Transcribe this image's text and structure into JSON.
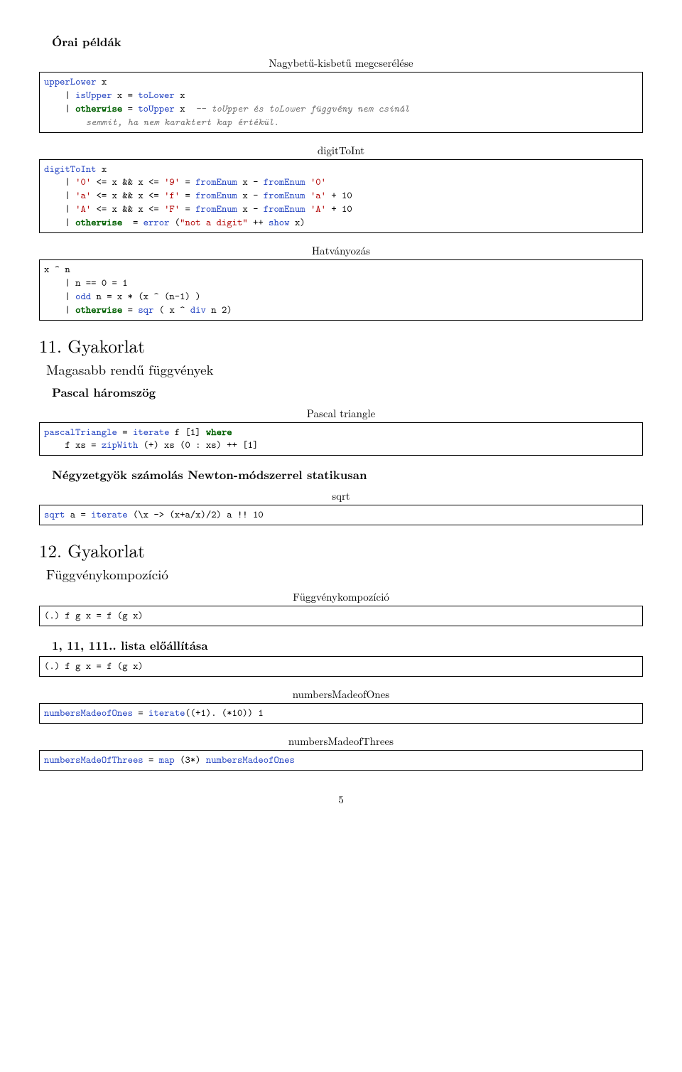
{
  "page_number": "5",
  "s0": {
    "title": "Órai példák"
  },
  "blocks": [
    {
      "caption": "Nagybetű-kisbetű megcserélése",
      "code": "<span class=\"fn\">upperLower</span> x\n    | <span class=\"fn\">isUpper</span> x = <span class=\"fn\">toLower</span> x\n    | <span class=\"kw\">otherwise</span> = <span class=\"fn\">toUpper</span> x  <span class=\"cm\">-- toUpper és toLower függvény nem csinál\n        semmit, ha nem karaktert kap értékül.</span>"
    },
    {
      "caption": "digitToInt",
      "code": "<span class=\"fn\">digitToInt</span> x\n    | <span class=\"str\">'0'</span> &lt;= x &amp;&amp; x &lt;= <span class=\"str\">'9'</span> = <span class=\"fn\">fromEnum</span> x - <span class=\"fn\">fromEnum</span> <span class=\"str\">'0'</span>\n    | <span class=\"str\">'a'</span> &lt;= x &amp;&amp; x &lt;= <span class=\"str\">'f'</span> = <span class=\"fn\">fromEnum</span> x - <span class=\"fn\">fromEnum</span> <span class=\"str\">'a'</span> + 10\n    | <span class=\"str\">'A'</span> &lt;= x &amp;&amp; x &lt;= <span class=\"str\">'F'</span> = <span class=\"fn\">fromEnum</span> x - <span class=\"fn\">fromEnum</span> <span class=\"str\">'A'</span> + 10\n    | <span class=\"kw\">otherwise</span>  = <span class=\"fn\">error</span> (<span class=\"str\">\"not a digit\"</span> ++ <span class=\"fn\">show</span> x)"
    },
    {
      "caption": "Hatványozás",
      "code": "x ^ n\n    | n == 0 = 1\n    | <span class=\"fn\">odd</span> n = x * (x ^ (n-1) )\n    | <span class=\"kw\">otherwise</span> = <span class=\"fn\">sqr</span> ( x ^ <span class=\"fn\">div</span> n 2)"
    }
  ],
  "s11": {
    "title": "11. Gyakorlat",
    "sub": "Magasabb rendű függvények",
    "p1_title": "Pascal háromszög",
    "p1_caption": "Pascal triangle",
    "p1_code": "<span class=\"fn\">pascalTriangle</span> = <span class=\"fn\">iterate</span> f [1] <span class=\"kw\">where</span>\n    f xs = <span class=\"fn\">zipWith</span> (+) xs (0 : xs) ++ [1]",
    "p2_title": "Négyzetgyök számolás Newton-módszerrel statikusan",
    "p2_caption": "sqrt",
    "p2_code": "<span class=\"fn\">sqrt</span> a = <span class=\"fn\">iterate</span> (\\x -&gt; (x+a/x)/2) a !! 10"
  },
  "s12": {
    "title": "12. Gyakorlat",
    "sub": "Függvénykompozíció",
    "p1_caption": "Függvénykompozíció",
    "p1_code": "(.) f g x = f (g x)",
    "p2_title": "1, 11, 111.. lista előállítása",
    "p2_code": "(.) f g x = f (g x)",
    "p3_caption": "numbersMadeofOnes",
    "p3_code": "<span class=\"fn\">numbersMadeofOnes</span> = <span class=\"fn\">iterate</span>((+1). (*10)) 1",
    "p4_caption": "numbersMadeofThrees",
    "p4_code": "<span class=\"fn\">numbersMadeOfThrees</span> = <span class=\"fn\">map</span> (3*) <span class=\"fn\">numbersMadeofOnes</span>"
  }
}
